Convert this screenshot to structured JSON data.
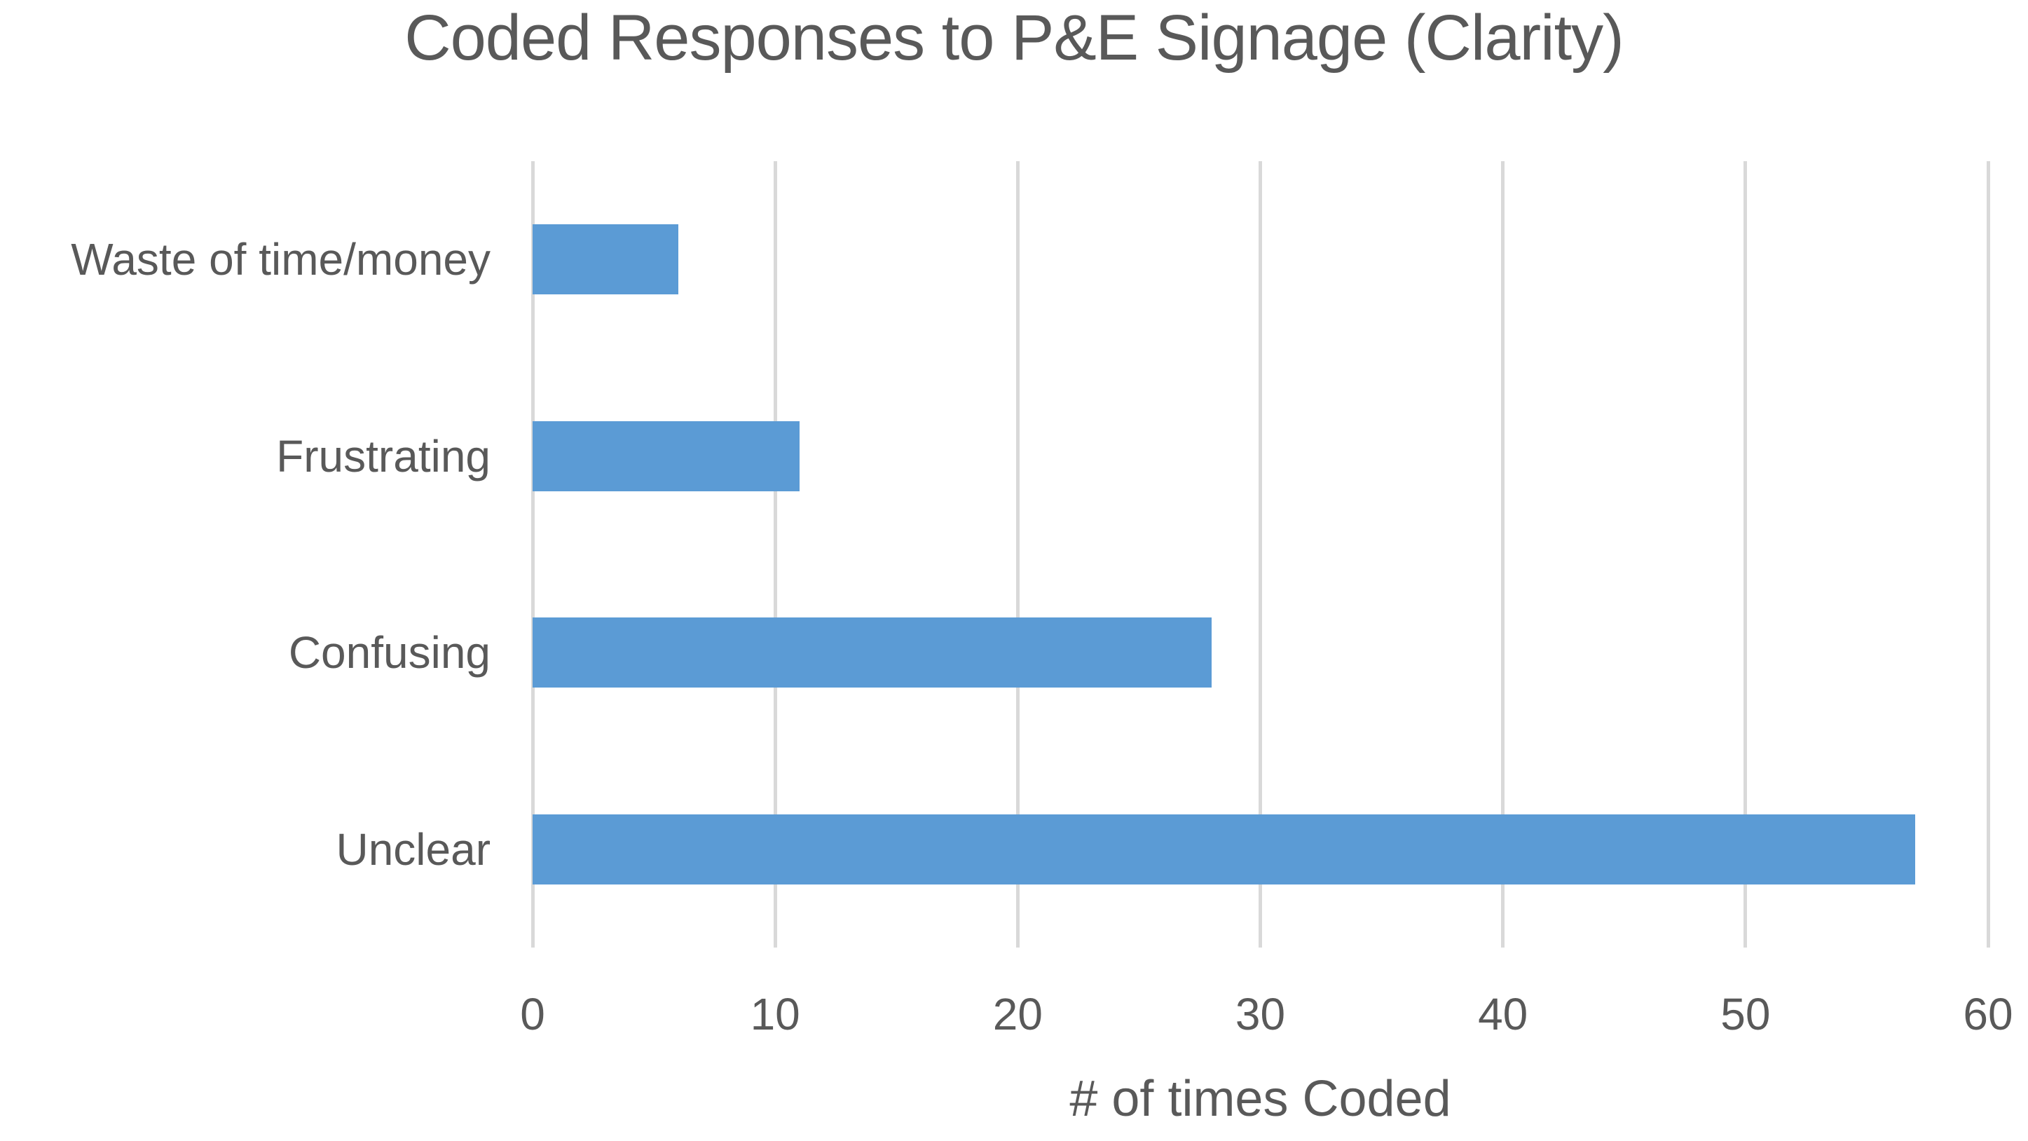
{
  "chart_data": {
    "type": "bar",
    "orientation": "horizontal",
    "title": "Coded Responses to P&E Signage (Clarity)",
    "categories": [
      "Waste of time/money",
      "Frustrating",
      "Confusing",
      "Unclear"
    ],
    "values": [
      6,
      11,
      28,
      57
    ],
    "xlabel": "# of times Coded",
    "ylabel": "",
    "xlim": [
      0,
      60
    ],
    "xticks": [
      0,
      10,
      20,
      30,
      40,
      50,
      60
    ],
    "grid": "vertical-gridlines-on",
    "legend": "none",
    "colors": {
      "bar": "#5B9BD5",
      "text": "#595959",
      "gridline": "#D9D9D9",
      "background": "#FFFFFF"
    }
  }
}
